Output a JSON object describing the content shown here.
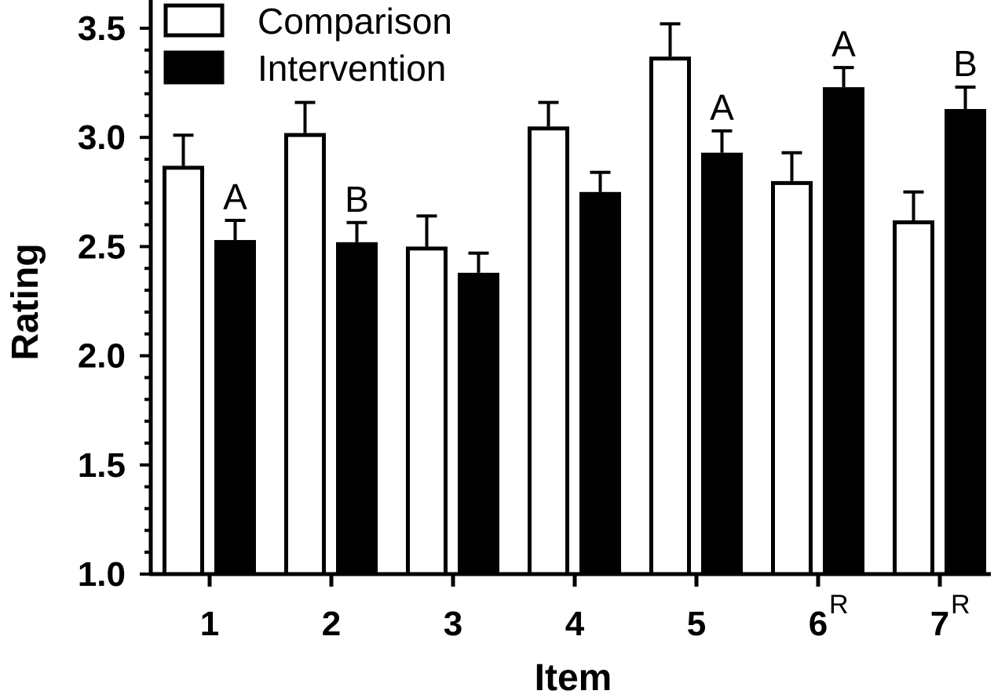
{
  "chart_data": {
    "type": "bar",
    "title": "",
    "xlabel": "Item",
    "ylabel": "Rating",
    "ylim": [
      1.0,
      3.6
    ],
    "yticks": [
      "1.0",
      "1.5",
      "2.0",
      "2.5",
      "3.0",
      "3.5"
    ],
    "categories": [
      {
        "label": "1",
        "superscript": ""
      },
      {
        "label": "2",
        "superscript": ""
      },
      {
        "label": "3",
        "superscript": ""
      },
      {
        "label": "4",
        "superscript": ""
      },
      {
        "label": "5",
        "superscript": ""
      },
      {
        "label": "6",
        "superscript": "R"
      },
      {
        "label": "7",
        "superscript": "R"
      }
    ],
    "series": [
      {
        "name": "Comparison",
        "fill": "#ffffff",
        "values": [
          2.87,
          3.02,
          2.5,
          3.05,
          3.37,
          2.8,
          2.62
        ],
        "errors": [
          0.14,
          0.14,
          0.14,
          0.11,
          0.15,
          0.13,
          0.13
        ],
        "annotations": [
          "",
          "",
          "",
          "",
          "",
          "",
          ""
        ]
      },
      {
        "name": "Intervention",
        "fill": "#000000",
        "values": [
          2.53,
          2.52,
          2.38,
          2.75,
          2.93,
          3.23,
          3.13
        ],
        "errors": [
          0.09,
          0.09,
          0.09,
          0.09,
          0.1,
          0.09,
          0.1
        ],
        "annotations": [
          "A",
          "B",
          "",
          "",
          "A",
          "A",
          "B"
        ]
      }
    ],
    "legend": "top-left",
    "grid": false
  }
}
